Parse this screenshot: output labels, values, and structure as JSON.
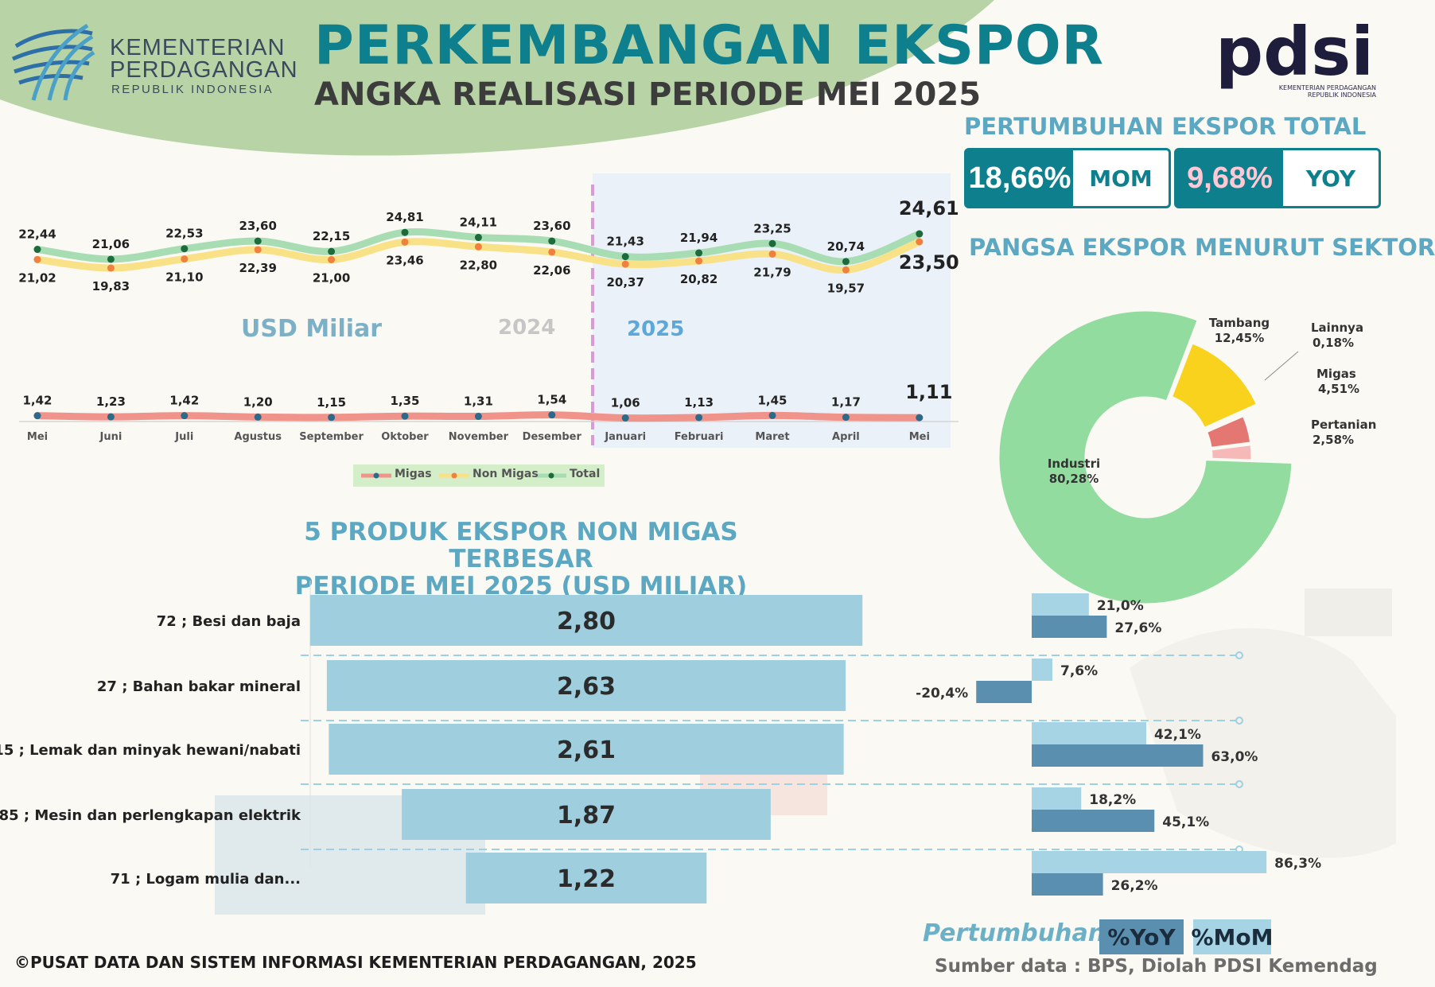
{
  "colors": {
    "teal": "#0e7f8c",
    "light_blue": "#5ca8c2",
    "green_wave": "#b8d4a6",
    "migas": "#f0938a",
    "non_migas": "#f8e187",
    "total": "#a8ddb4",
    "bar": "#9fcfdf",
    "yoy": "#5b8faf",
    "mom": "#a6d4e4"
  },
  "header": {
    "ministry_line1": "KEMENTERIAN",
    "ministry_line2": "PERDAGANGAN",
    "ministry_line3": "REPUBLIK INDONESIA",
    "title": "PERKEMBANGAN EKSPOR",
    "subtitle": "ANGKA REALISASI PERIODE MEI 2025",
    "pdsi_logo": "pdsi",
    "pdsi_caption_1": "KEMENTERIAN PERDAGANGAN",
    "pdsi_caption_2": "REPUBLIK INDONESIA"
  },
  "growth_total": {
    "title": "PERTUMBUHAN EKSPOR TOTAL",
    "mom_value": "18,66%",
    "mom_label": "MOM",
    "yoy_value": "9,68%",
    "yoy_label": "YOY"
  },
  "line_chart_labels": {
    "unit": "USD Miliar",
    "year_2024": "2024",
    "year_2025": "2025",
    "legend_migas": "Migas",
    "legend_non_migas": "Non Migas",
    "legend_total": "Total"
  },
  "top5": {
    "title_line1": "5 PRODUK EKSPOR NON MIGAS TERBESAR",
    "title_line2": "PERIODE MEI 2025 (USD MILIAR)"
  },
  "growth_legend": {
    "label": "Pertumbuhan",
    "yoy": "%YoY",
    "mom": "%MoM"
  },
  "source": "Sumber data : BPS, Diolah PDSI Kemendag",
  "copyright": "©PUSAT DATA DAN SISTEM INFORMASI KEMENTERIAN PERDAGANGAN, 2025",
  "chart_data": [
    {
      "type": "line",
      "categories": [
        "Mei",
        "Juni",
        "Juli",
        "Agustus",
        "September",
        "Oktober",
        "November",
        "Desember",
        "Januari",
        "Februari",
        "Maret",
        "April",
        "Mei"
      ],
      "series": [
        {
          "name": "Total",
          "values": [
            22.44,
            21.06,
            22.53,
            23.6,
            22.15,
            24.81,
            24.11,
            23.6,
            21.43,
            21.94,
            23.25,
            20.74,
            24.61
          ],
          "labels": [
            "22,44",
            "21,06",
            "22,53",
            "23,60",
            "22,15",
            "24,81",
            "24,11",
            "23,60",
            "21,43",
            "21,94",
            "23,25",
            "20,74",
            "24,61"
          ]
        },
        {
          "name": "Non Migas",
          "values": [
            21.02,
            19.83,
            21.1,
            22.39,
            21.0,
            23.46,
            22.8,
            22.06,
            20.37,
            20.82,
            21.79,
            19.57,
            23.5
          ],
          "labels": [
            "21,02",
            "19,83",
            "21,10",
            "22,39",
            "21,00",
            "23,46",
            "22,80",
            "22,06",
            "20,37",
            "20,82",
            "21,79",
            "19,57",
            "23,50"
          ]
        },
        {
          "name": "Migas",
          "values": [
            1.42,
            1.23,
            1.42,
            1.2,
            1.15,
            1.35,
            1.31,
            1.54,
            1.06,
            1.13,
            1.45,
            1.17,
            1.11
          ],
          "labels": [
            "1,42",
            "1,23",
            "1,42",
            "1,20",
            "1,15",
            "1,35",
            "1,31",
            "1,54",
            "1,06",
            "1,13",
            "1,45",
            "1,17",
            "1,11"
          ]
        }
      ],
      "ylabel": "USD Miliar"
    },
    {
      "type": "pie",
      "title": "PANGSA EKSPOR MENURUT SEKTOR",
      "slices": [
        {
          "name": "Industri",
          "value": 80.28,
          "label": "80,28%",
          "color": "#92dca0"
        },
        {
          "name": "Tambang",
          "value": 12.45,
          "label": "12,45%",
          "color": "#f8d21c"
        },
        {
          "name": "Lainnya",
          "value": 0.18,
          "label": "0,18%",
          "color": "#c0c0c0"
        },
        {
          "name": "Migas",
          "value": 4.51,
          "label": "4,51%",
          "color": "#e57772"
        },
        {
          "name": "Pertanian",
          "value": 2.58,
          "label": "2,58%",
          "color": "#f6b9b8"
        }
      ]
    },
    {
      "type": "bar",
      "categories": [
        "72 ; Besi dan baja",
        "27 ; Bahan bakar mineral",
        "15 ; Lemak dan minyak hewani/nabati",
        "85 ; Mesin dan perlengkapan elektrik",
        "71 ; Logam mulia dan..."
      ],
      "values": [
        2.8,
        2.63,
        2.61,
        1.87,
        1.22
      ],
      "value_labels": [
        "2,80",
        "2,63",
        "2,61",
        "1,87",
        "1,22"
      ],
      "series": [
        {
          "name": "%MoM",
          "values": [
            21.0,
            7.6,
            42.1,
            18.2,
            86.3
          ],
          "labels": [
            "21,0%",
            "7,6%",
            "42,1%",
            "18,2%",
            "86,3%"
          ]
        },
        {
          "name": "%YoY",
          "values": [
            27.6,
            -20.4,
            63.0,
            45.1,
            26.2
          ],
          "labels": [
            "27,6%",
            "-20,4%",
            "63,0%",
            "45,1%",
            "26,2%"
          ]
        }
      ]
    }
  ]
}
